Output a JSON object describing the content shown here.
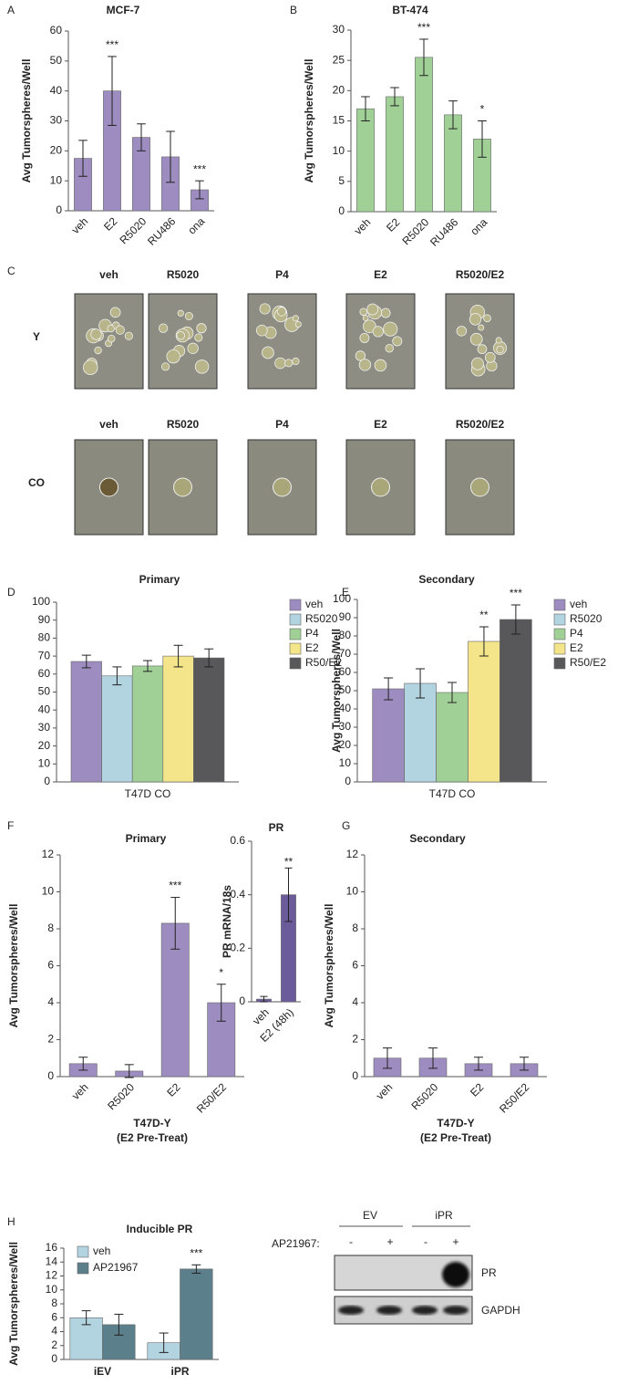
{
  "chart_data": [
    {
      "type": "bar",
      "panel": "A",
      "title": "MCF-7",
      "ylabel": "Avg Tumorspheres/Well",
      "categories": [
        "veh",
        "E2",
        "R5020",
        "RU486",
        "ona"
      ],
      "values": [
        17.5,
        40,
        24.5,
        18,
        7
      ],
      "errors": [
        6,
        11.5,
        4.5,
        8.5,
        3
      ],
      "sig": [
        null,
        "***",
        null,
        null,
        "***"
      ],
      "color": "#9d8cc0",
      "ylim": [
        0,
        60
      ],
      "yticks": [
        0,
        10,
        20,
        30,
        40,
        50,
        60
      ]
    },
    {
      "type": "bar",
      "panel": "B",
      "title": "BT-474",
      "ylabel": "Avg Tumorspheres/Well",
      "categories": [
        "veh",
        "E2",
        "R5020",
        "RU486",
        "ona"
      ],
      "values": [
        17,
        19,
        25.5,
        16,
        12
      ],
      "errors": [
        2,
        1.5,
        3,
        2.3,
        3
      ],
      "sig": [
        null,
        null,
        "***",
        null,
        "*"
      ],
      "color": "#a0d096",
      "ylim": [
        0,
        30
      ],
      "yticks": [
        0,
        5,
        10,
        15,
        20,
        25,
        30
      ]
    },
    {
      "type": "bar",
      "panel": "D",
      "title": "Primary",
      "categories": [
        "T47D CO"
      ],
      "series": [
        {
          "name": "veh",
          "color": "#9d8cc0",
          "values": [
            67
          ],
          "errors": [
            3.5
          ]
        },
        {
          "name": "R5020",
          "color": "#b2d3e0",
          "values": [
            59
          ],
          "errors": [
            5
          ]
        },
        {
          "name": "P4",
          "color": "#a0d096",
          "values": [
            64.5
          ],
          "errors": [
            3
          ]
        },
        {
          "name": "E2",
          "color": "#f4e48a",
          "values": [
            70
          ],
          "errors": [
            6
          ]
        },
        {
          "name": "R50/E2",
          "color": "#58585a",
          "values": [
            69
          ],
          "errors": [
            5
          ]
        }
      ],
      "ylim": [
        0,
        100
      ],
      "yticks": [
        0,
        10,
        20,
        30,
        40,
        50,
        60,
        70,
        80,
        90,
        100
      ],
      "legend": "right"
    },
    {
      "type": "bar",
      "panel": "E",
      "title": "Secondary",
      "ylabel": "Avg Tumorspheres/Well",
      "categories": [
        "T47D CO"
      ],
      "series": [
        {
          "name": "veh",
          "color": "#9d8cc0",
          "values": [
            51
          ],
          "errors": [
            6
          ]
        },
        {
          "name": "R5020",
          "color": "#b2d3e0",
          "values": [
            54
          ],
          "errors": [
            8
          ]
        },
        {
          "name": "P4",
          "color": "#a0d096",
          "values": [
            49
          ],
          "errors": [
            5.5
          ]
        },
        {
          "name": "E2",
          "color": "#f4e48a",
          "values": [
            77
          ],
          "errors": [
            8
          ],
          "sig": [
            "**"
          ]
        },
        {
          "name": "R50/E2",
          "color": "#58585a",
          "values": [
            89
          ],
          "errors": [
            8
          ],
          "sig": [
            "***"
          ]
        }
      ],
      "ylim": [
        0,
        100
      ],
      "yticks": [
        0,
        10,
        20,
        30,
        40,
        50,
        60,
        70,
        80,
        90,
        100
      ],
      "legend": "right"
    },
    {
      "type": "bar",
      "panel": "F",
      "title": "Primary",
      "ylabel": "Avg Tumorspheres/Well",
      "xlabel": [
        "T47D-Y",
        "(E2 Pre-Treat)"
      ],
      "categories": [
        "veh",
        "R5020",
        "E2",
        "R50/E2"
      ],
      "values": [
        0.7,
        0.3,
        8.3,
        4
      ],
      "errors": [
        0.35,
        0.35,
        1.4,
        1
      ],
      "sig": [
        null,
        null,
        "***",
        "*"
      ],
      "color": "#9d8cc0",
      "ylim": [
        0,
        12
      ],
      "yticks": [
        0,
        2,
        4,
        6,
        8,
        10,
        12
      ]
    },
    {
      "type": "bar",
      "title": "PR",
      "ylabel": "PR mRNA/18s",
      "categories": [
        "veh",
        "E2 (48h)"
      ],
      "values": [
        0.01,
        0.4
      ],
      "errors": [
        0.01,
        0.1
      ],
      "sig": [
        null,
        "**"
      ],
      "color": "#6b5b9a",
      "ylim": [
        0,
        0.6
      ],
      "yticks": [
        0,
        0.2,
        0.4,
        0.6
      ]
    },
    {
      "type": "bar",
      "panel": "G",
      "title": "Secondary",
      "ylabel": "Avg Tumorspheres/Well",
      "xlabel": [
        "T47D-Y",
        "(E2 Pre-Treat)"
      ],
      "categories": [
        "veh",
        "R5020",
        "E2",
        "R50/E2"
      ],
      "values": [
        1,
        1,
        0.7,
        0.7
      ],
      "errors": [
        0.55,
        0.55,
        0.35,
        0.35
      ],
      "color": "#9d8cc0",
      "ylim": [
        0,
        12
      ],
      "yticks": [
        0,
        2,
        4,
        6,
        8,
        10,
        12
      ]
    },
    {
      "type": "bar",
      "panel": "H",
      "title": "Inducible PR",
      "ylabel": "Avg Tumorspheres/Well",
      "categories": [
        "iEV",
        "iPR"
      ],
      "series": [
        {
          "name": "veh",
          "color": "#b2d3e0",
          "values": [
            6,
            2.4
          ],
          "errors": [
            1,
            1.4
          ]
        },
        {
          "name": "AP21967",
          "color": "#5c808b",
          "values": [
            5,
            13
          ],
          "errors": [
            1.5,
            0.6
          ],
          "sig": [
            null,
            "***"
          ]
        }
      ],
      "ylim": [
        0,
        16
      ],
      "yticks": [
        0,
        2,
        4,
        6,
        8,
        10,
        12,
        14,
        16
      ],
      "legend": "top-left"
    }
  ],
  "panel_c": {
    "panel": "C",
    "rows": [
      {
        "label": "Y",
        "columns": [
          "veh",
          "R5020",
          "P4",
          "E2",
          "R5020/E2"
        ]
      },
      {
        "label": "CO",
        "columns": [
          "veh",
          "R5020",
          "P4",
          "E2",
          "R5020/E2"
        ]
      }
    ]
  },
  "blot": {
    "groups": [
      "EV",
      "iPR"
    ],
    "treatment_label": "AP21967:",
    "lanes": [
      "-",
      "+",
      "-",
      "+"
    ],
    "bands": [
      "PR",
      "GAPDH"
    ]
  }
}
